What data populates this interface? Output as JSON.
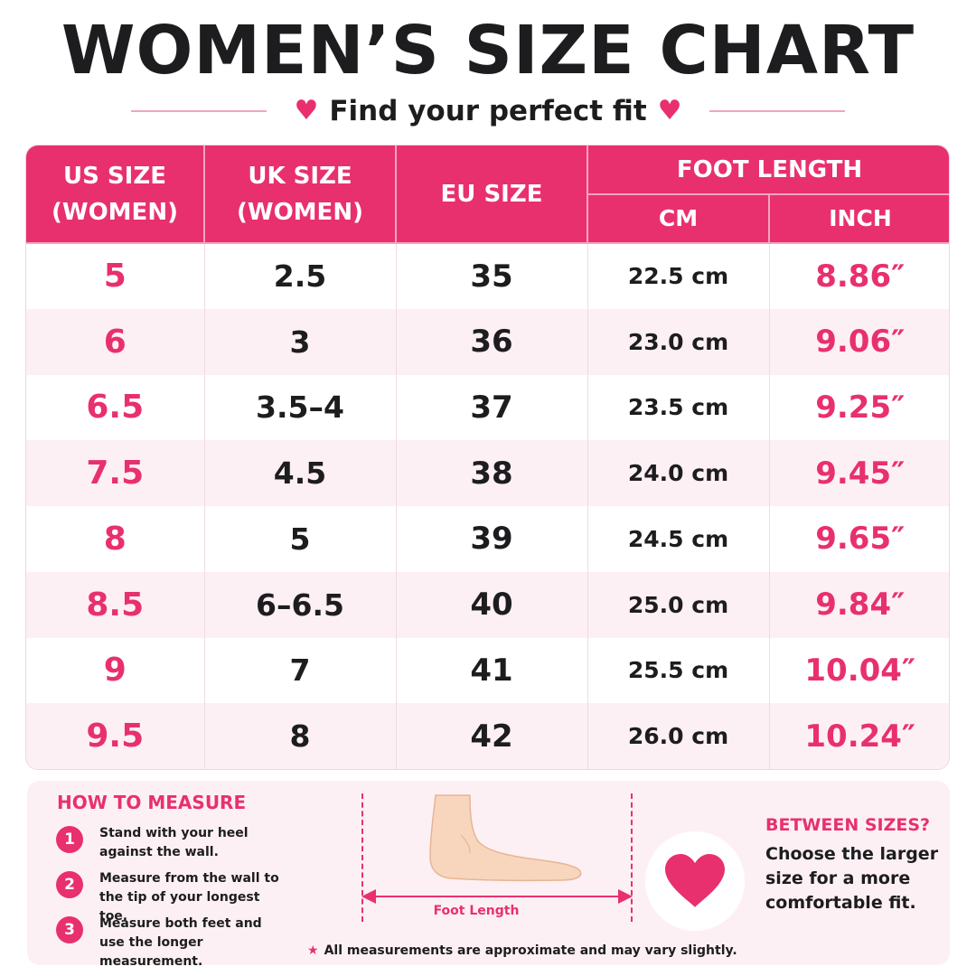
{
  "header": {
    "title": "WOMEN’S SIZE CHART",
    "subtitle": "Find your perfect fit"
  },
  "table": {
    "headers": {
      "us": "US SIZE (WOMEN)",
      "uk": "UK SIZE (WOMEN)",
      "eu": "EU SIZE",
      "foot_length": "FOOT LENGTH",
      "cm": "CM",
      "inch": "INCH"
    },
    "rows": [
      {
        "us": "5",
        "uk": "2.5",
        "eu": "35",
        "cm": "22.5 cm",
        "inch": "8.86″"
      },
      {
        "us": "6",
        "uk": "3",
        "eu": "36",
        "cm": "23.0 cm",
        "inch": "9.06″"
      },
      {
        "us": "6.5",
        "uk": "3.5–4",
        "eu": "37",
        "cm": "23.5 cm",
        "inch": "9.25″"
      },
      {
        "us": "7.5",
        "uk": "4.5",
        "eu": "38",
        "cm": "24.0 cm",
        "inch": "9.45″"
      },
      {
        "us": "8",
        "uk": "5",
        "eu": "39",
        "cm": "24.5 cm",
        "inch": "9.65″"
      },
      {
        "us": "8.5",
        "uk": "6–6.5",
        "eu": "40",
        "cm": "25.0 cm",
        "inch": "9.84″"
      },
      {
        "us": "9",
        "uk": "7",
        "eu": "41",
        "cm": "25.5 cm",
        "inch": "10.04″"
      },
      {
        "us": "9.5",
        "uk": "8",
        "eu": "42",
        "cm": "26.0 cm",
        "inch": "10.24″"
      }
    ]
  },
  "how_to_measure": {
    "title": "HOW TO MEASURE",
    "steps": [
      {
        "num": "1",
        "text": "Stand with your heel against the wall."
      },
      {
        "num": "2",
        "text": "Measure from the wall to the tip of your longest toe."
      },
      {
        "num": "3",
        "text": "Measure both feet and use the longer measurement."
      }
    ]
  },
  "illustration": {
    "label": "Foot Length",
    "icon": "foot-icon"
  },
  "note": "All measurements are approximate and may vary slightly.",
  "between_sizes": {
    "title": "BETWEEN SIZES?",
    "text": "Choose the larger size for a more comfortable fit.",
    "icon": "heart-icon"
  },
  "colors": {
    "accent": "#e8306f",
    "row_alt": "#fdf0f4",
    "text": "#1d1d1f"
  }
}
